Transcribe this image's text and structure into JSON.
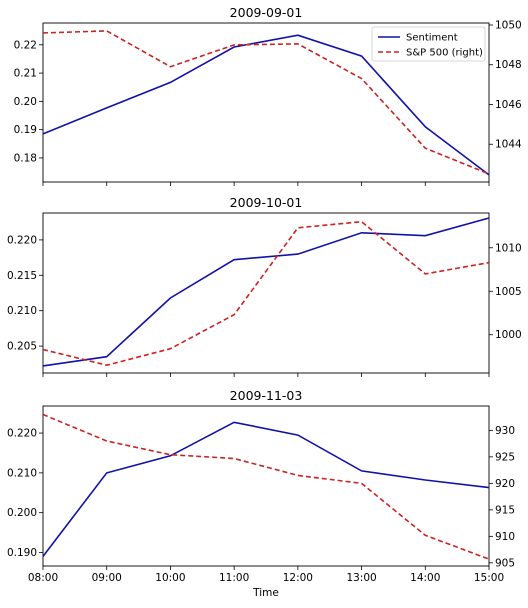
{
  "chart_data": [
    {
      "type": "line",
      "title": "2009-09-01",
      "categories": [
        "08:00",
        "09:00",
        "10:00",
        "11:00",
        "12:00",
        "13:00",
        "14:00",
        "15:00"
      ],
      "xlabel": "",
      "ylim_left": [
        0.1715,
        0.2277
      ],
      "yticks_left": [
        0.18,
        0.19,
        0.2,
        0.21,
        0.22
      ],
      "ylim_right": [
        1042.1,
        1050.1
      ],
      "yticks_right": [
        1044,
        1046,
        1048,
        1050
      ],
      "legend_position": "top-right",
      "series": [
        {
          "name": "Sentiment",
          "axis": "left",
          "style": "solid",
          "color": "#1111aa",
          "values": [
            0.1885,
            0.1977,
            0.2067,
            0.2192,
            0.2234,
            0.216,
            0.191,
            0.174
          ]
        },
        {
          "name": "S&P 500 (right)",
          "axis": "right",
          "style": "dashed",
          "color": "#cc2222",
          "values": [
            1049.6,
            1049.7,
            1047.9,
            1049.0,
            1049.05,
            1047.3,
            1043.8,
            1042.5
          ]
        }
      ]
    },
    {
      "type": "line",
      "title": "2009-10-01",
      "categories": [
        "08:00",
        "09:00",
        "10:00",
        "11:00",
        "12:00",
        "13:00",
        "14:00",
        "15:00"
      ],
      "xlabel": "",
      "ylim_left": [
        0.2012,
        0.2238
      ],
      "yticks_left": [
        0.205,
        0.21,
        0.215,
        0.22
      ],
      "ylim_right": [
        995.6,
        1014.0
      ],
      "yticks_right": [
        1000,
        1005,
        1010
      ],
      "series": [
        {
          "name": "Sentiment",
          "axis": "left",
          "style": "solid",
          "color": "#1111aa",
          "values": [
            0.2022,
            0.2035,
            0.2118,
            0.2172,
            0.218,
            0.221,
            0.2206,
            0.2231
          ]
        },
        {
          "name": "S&P 500 (right)",
          "axis": "right",
          "style": "dashed",
          "color": "#cc2222",
          "values": [
            998.3,
            996.5,
            998.4,
            1002.3,
            1012.3,
            1013.0,
            1007.0,
            1008.3
          ]
        }
      ]
    },
    {
      "type": "line",
      "title": "2009-11-03",
      "categories": [
        "08:00",
        "09:00",
        "10:00",
        "11:00",
        "12:00",
        "13:00",
        "14:00",
        "15:00"
      ],
      "xlabel": "Time",
      "ylim_left": [
        0.1866,
        0.2268
      ],
      "yticks_left": [
        0.19,
        0.2,
        0.21,
        0.22
      ],
      "ylim_right": [
        904.4,
        934.6
      ],
      "yticks_right": [
        905,
        910,
        915,
        920,
        925,
        930
      ],
      "series": [
        {
          "name": "Sentiment",
          "axis": "left",
          "style": "solid",
          "color": "#1111aa",
          "values": [
            0.189,
            0.21,
            0.2143,
            0.2227,
            0.2195,
            0.2105,
            0.2082,
            0.2063
          ]
        },
        {
          "name": "S&P 500 (right)",
          "axis": "right",
          "style": "dashed",
          "color": "#cc2222",
          "values": [
            933.0,
            928.0,
            925.4,
            924.7,
            921.5,
            920.0,
            910.2,
            905.7
          ]
        }
      ]
    }
  ]
}
